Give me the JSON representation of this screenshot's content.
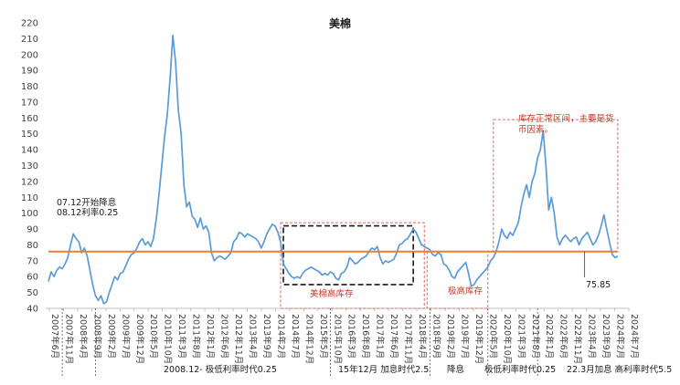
{
  "chart_data": {
    "type": "line",
    "title": "美棉",
    "xlabel": "",
    "ylabel": "",
    "ylim": [
      40,
      220
    ],
    "yticks": [
      40,
      50,
      60,
      70,
      80,
      90,
      100,
      110,
      120,
      130,
      140,
      150,
      160,
      170,
      180,
      190,
      200,
      210,
      220
    ],
    "xlim": [
      "2007-05",
      "2024-12"
    ],
    "xtick_labels": [
      {
        "t": "2007-05",
        "label": "2007年6月"
      },
      {
        "t": "2007-11",
        "label": "2007年11月"
      },
      {
        "t": "2008-05",
        "label": "2008年4月"
      },
      {
        "t": "2008-11",
        "label": "2008年9月"
      },
      {
        "t": "2009-05",
        "label": "2009年2月"
      },
      {
        "t": "2009-11",
        "label": "2009年7月"
      },
      {
        "t": "2010-05",
        "label": "2009年12月"
      },
      {
        "t": "2010-11",
        "label": "2010年5月"
      },
      {
        "t": "2011-05",
        "label": "2010年10月"
      },
      {
        "t": "2011-11",
        "label": "2011年3月"
      },
      {
        "t": "2012-05",
        "label": "2011年8月"
      },
      {
        "t": "2012-11",
        "label": "2012年1月"
      },
      {
        "t": "2013-05",
        "label": "2012年6月"
      },
      {
        "t": "2013-11",
        "label": "2012年11月"
      },
      {
        "t": "2014-05",
        "label": "2013年4月"
      },
      {
        "t": "2014-11",
        "label": "2013年9月"
      },
      {
        "t": "2015-05",
        "label": "2014年2月"
      },
      {
        "t": "2015-11",
        "label": "2014年7月"
      },
      {
        "t": "2016-05",
        "label": "2014年12月"
      },
      {
        "t": "2016-11",
        "label": "2015年5月"
      },
      {
        "t": "2017-05",
        "label": "2015年10月"
      },
      {
        "t": "2017-11",
        "label": "2016年3月"
      },
      {
        "t": "2018-05",
        "label": "2016年8月"
      },
      {
        "t": "2018-11",
        "label": "2017年1月"
      },
      {
        "t": "2019-05",
        "label": "2017年6月"
      },
      {
        "t": "2019-11",
        "label": "2017年11月"
      },
      {
        "t": "2020-05",
        "label": "2018年4月"
      },
      {
        "t": "2020-11",
        "label": "2018年9月"
      },
      {
        "t": "2021-05",
        "label": "2019年2月"
      },
      {
        "t": "2021-11",
        "label": "2019年7月"
      },
      {
        "t": "2022-05",
        "label": "2019年12月"
      },
      {
        "t": "2022-11",
        "label": "2020年5月"
      },
      {
        "t": "2023-05",
        "label": "2020年10月"
      },
      {
        "t": "2023-11",
        "label": "2021年3月"
      },
      {
        "t": "2024-05",
        "label": "2021年8月"
      },
      {
        "t": "2024-11",
        "label": "2022年1月"
      },
      {
        "t": "2024-11",
        "label": "2022年6月"
      },
      {
        "t": "2024-11",
        "label": "2022年11月"
      },
      {
        "t": "2024-11",
        "label": "2023年4月"
      },
      {
        "t": "2024-11",
        "label": "2023年9月"
      },
      {
        "t": "2024-11",
        "label": "2024年2月"
      },
      {
        "t": "2024-11",
        "label": "2024年7月"
      }
    ],
    "series": [
      {
        "color": "#5b9bd5",
        "points": [
          [
            "2007-06",
            57
          ],
          [
            "2007-07",
            63
          ],
          [
            "2007-08",
            60
          ],
          [
            "2007-09",
            64
          ],
          [
            "2007-10",
            66
          ],
          [
            "2007-11",
            65
          ],
          [
            "2007-12",
            68
          ],
          [
            "2008-01",
            72
          ],
          [
            "2008-02",
            80
          ],
          [
            "2008-03",
            87
          ],
          [
            "2008-04",
            84
          ],
          [
            "2008-05",
            82
          ],
          [
            "2008-06",
            75
          ],
          [
            "2008-07",
            78
          ],
          [
            "2008-08",
            73
          ],
          [
            "2008-09",
            64
          ],
          [
            "2008-10",
            55
          ],
          [
            "2008-11",
            48
          ],
          [
            "2008-12",
            45
          ],
          [
            "2009-01",
            48
          ],
          [
            "2009-02",
            43
          ],
          [
            "2009-03",
            44
          ],
          [
            "2009-04",
            50
          ],
          [
            "2009-05",
            55
          ],
          [
            "2009-06",
            60
          ],
          [
            "2009-07",
            58
          ],
          [
            "2009-08",
            62
          ],
          [
            "2009-09",
            63
          ],
          [
            "2009-10",
            67
          ],
          [
            "2009-11",
            71
          ],
          [
            "2009-12",
            74
          ],
          [
            "2010-01",
            75
          ],
          [
            "2010-02",
            78
          ],
          [
            "2010-03",
            82
          ],
          [
            "2010-04",
            84
          ],
          [
            "2010-05",
            80
          ],
          [
            "2010-06",
            82
          ],
          [
            "2010-07",
            79
          ],
          [
            "2010-08",
            84
          ],
          [
            "2010-09",
            96
          ],
          [
            "2010-10",
            112
          ],
          [
            "2010-11",
            130
          ],
          [
            "2010-12",
            148
          ],
          [
            "2011-01",
            162
          ],
          [
            "2011-02",
            185
          ],
          [
            "2011-03",
            212
          ],
          [
            "2011-04",
            195
          ],
          [
            "2011-05",
            165
          ],
          [
            "2011-06",
            150
          ],
          [
            "2011-07",
            118
          ],
          [
            "2011-08",
            104
          ],
          [
            "2011-09",
            107
          ],
          [
            "2011-10",
            98
          ],
          [
            "2011-11",
            96
          ],
          [
            "2011-12",
            91
          ],
          [
            "2012-01",
            97
          ],
          [
            "2012-02",
            90
          ],
          [
            "2012-03",
            92
          ],
          [
            "2012-04",
            88
          ],
          [
            "2012-05",
            75
          ],
          [
            "2012-06",
            70
          ],
          [
            "2012-07",
            72
          ],
          [
            "2012-08",
            73
          ],
          [
            "2012-09",
            72
          ],
          [
            "2012-10",
            71
          ],
          [
            "2012-11",
            73
          ],
          [
            "2012-12",
            75
          ],
          [
            "2013-01",
            82
          ],
          [
            "2013-02",
            84
          ],
          [
            "2013-03",
            88
          ],
          [
            "2013-04",
            87
          ],
          [
            "2013-05",
            85
          ],
          [
            "2013-06",
            87
          ],
          [
            "2013-07",
            86
          ],
          [
            "2013-08",
            85
          ],
          [
            "2013-09",
            84
          ],
          [
            "2013-10",
            82
          ],
          [
            "2013-11",
            78
          ],
          [
            "2013-12",
            82
          ],
          [
            "2014-01",
            87
          ],
          [
            "2014-02",
            90
          ],
          [
            "2014-03",
            93
          ],
          [
            "2014-04",
            92
          ],
          [
            "2014-05",
            88
          ],
          [
            "2014-06",
            82
          ],
          [
            "2014-07",
            68
          ],
          [
            "2014-08",
            65
          ],
          [
            "2014-09",
            62
          ],
          [
            "2014-10",
            60
          ],
          [
            "2014-11",
            59
          ],
          [
            "2014-12",
            60
          ],
          [
            "2015-01",
            59
          ],
          [
            "2015-02",
            62
          ],
          [
            "2015-03",
            64
          ],
          [
            "2015-04",
            65
          ],
          [
            "2015-05",
            66
          ],
          [
            "2015-06",
            65
          ],
          [
            "2015-07",
            64
          ],
          [
            "2015-08",
            63
          ],
          [
            "2015-09",
            61
          ],
          [
            "2015-10",
            62
          ],
          [
            "2015-11",
            61
          ],
          [
            "2015-12",
            63
          ],
          [
            "2016-01",
            62
          ],
          [
            "2016-02",
            59
          ],
          [
            "2016-03",
            58
          ],
          [
            "2016-04",
            62
          ],
          [
            "2016-05",
            63
          ],
          [
            "2016-06",
            66
          ],
          [
            "2016-07",
            72
          ],
          [
            "2016-08",
            70
          ],
          [
            "2016-09",
            68
          ],
          [
            "2016-10",
            69
          ],
          [
            "2016-11",
            71
          ],
          [
            "2016-12",
            72
          ],
          [
            "2017-01",
            73
          ],
          [
            "2017-02",
            76
          ],
          [
            "2017-03",
            78
          ],
          [
            "2017-04",
            77
          ],
          [
            "2017-05",
            79
          ],
          [
            "2017-06",
            72
          ],
          [
            "2017-07",
            68
          ],
          [
            "2017-08",
            70
          ],
          [
            "2017-09",
            69
          ],
          [
            "2017-10",
            70
          ],
          [
            "2017-11",
            71
          ],
          [
            "2017-12",
            75
          ],
          [
            "2018-01",
            80
          ],
          [
            "2018-02",
            81
          ],
          [
            "2018-03",
            83
          ],
          [
            "2018-04",
            84
          ],
          [
            "2018-05",
            87
          ],
          [
            "2018-06",
            90
          ],
          [
            "2018-07",
            88
          ],
          [
            "2018-08",
            84
          ],
          [
            "2018-09",
            80
          ],
          [
            "2018-10",
            79
          ],
          [
            "2018-11",
            78
          ],
          [
            "2018-12",
            77
          ],
          [
            "2019-01",
            74
          ],
          [
            "2019-02",
            73
          ],
          [
            "2019-03",
            75
          ],
          [
            "2019-04",
            74
          ],
          [
            "2019-05",
            68
          ],
          [
            "2019-06",
            67
          ],
          [
            "2019-07",
            64
          ],
          [
            "2019-08",
            60
          ],
          [
            "2019-09",
            59
          ],
          [
            "2019-10",
            63
          ],
          [
            "2019-11",
            65
          ],
          [
            "2019-12",
            67
          ],
          [
            "2020-01",
            69
          ],
          [
            "2020-02",
            62
          ],
          [
            "2020-03",
            54
          ],
          [
            "2020-04",
            55
          ],
          [
            "2020-05",
            58
          ],
          [
            "2020-06",
            60
          ],
          [
            "2020-07",
            62
          ],
          [
            "2020-08",
            64
          ],
          [
            "2020-09",
            66
          ],
          [
            "2020-10",
            70
          ],
          [
            "2020-11",
            72
          ],
          [
            "2020-12",
            76
          ],
          [
            "2021-01",
            82
          ],
          [
            "2021-02",
            90
          ],
          [
            "2021-03",
            86
          ],
          [
            "2021-04",
            84
          ],
          [
            "2021-05",
            88
          ],
          [
            "2021-06",
            86
          ],
          [
            "2021-07",
            90
          ],
          [
            "2021-08",
            94
          ],
          [
            "2021-09",
            104
          ],
          [
            "2021-10",
            112
          ],
          [
            "2021-11",
            118
          ],
          [
            "2021-12",
            110
          ],
          [
            "2022-01",
            120
          ],
          [
            "2022-02",
            125
          ],
          [
            "2022-03",
            135
          ],
          [
            "2022-04",
            140
          ],
          [
            "2022-05",
            152
          ],
          [
            "2022-06",
            130
          ],
          [
            "2022-07",
            102
          ],
          [
            "2022-08",
            110
          ],
          [
            "2022-09",
            100
          ],
          [
            "2022-10",
            85
          ],
          [
            "2022-11",
            80
          ],
          [
            "2022-12",
            84
          ],
          [
            "2023-01",
            86
          ],
          [
            "2023-02",
            84
          ],
          [
            "2023-03",
            82
          ],
          [
            "2023-04",
            84
          ],
          [
            "2023-05",
            85
          ],
          [
            "2023-06",
            80
          ],
          [
            "2023-07",
            84
          ],
          [
            "2023-08",
            86
          ],
          [
            "2023-09",
            88
          ],
          [
            "2023-10",
            84
          ],
          [
            "2023-11",
            80
          ],
          [
            "2023-12",
            82
          ],
          [
            "2024-01",
            86
          ],
          [
            "2024-02",
            92
          ],
          [
            "2024-03",
            99
          ],
          [
            "2024-04",
            90
          ],
          [
            "2024-05",
            82
          ],
          [
            "2024-06",
            74
          ],
          [
            "2024-07",
            72
          ],
          [
            "2024-08",
            73
          ]
        ]
      },
      {
        "color": "#ed7d31",
        "points": [
          [
            "2007-06",
            75.85
          ],
          [
            "2024-08",
            75.85
          ]
        ]
      }
    ],
    "grid": false,
    "legend": "none",
    "annotations": {
      "rate_cut_line1": "07.12开始降息",
      "rate_cut_line2": "08.12利率0.25",
      "red_box_2014": "美棉高库存",
      "red_box_2019": "极高库存",
      "red_box_2021_line1": "库存正常区间，主要是货",
      "red_box_2021_line2": "币因素。",
      "mean_label": "75.85",
      "era_1": "2008.12- 极低利率时代0.25",
      "era_2": "15年12月 加息时代2.5",
      "era_3": "降息",
      "era_4": "极低利率时代0.25",
      "era_5": "22.3月加息 高利率时代5.5"
    }
  }
}
